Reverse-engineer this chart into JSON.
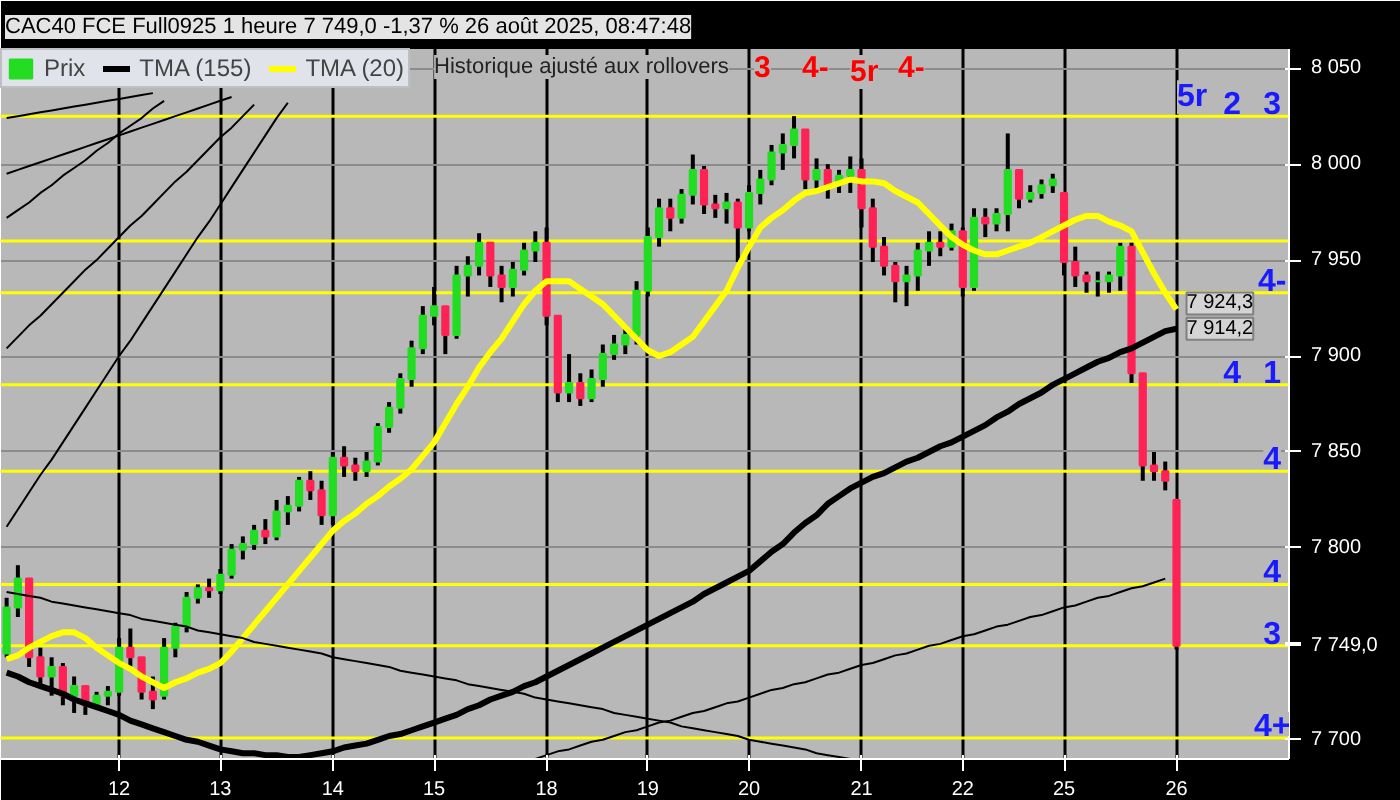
{
  "chart_data": {
    "type": "candlestick",
    "title": "CAC40 FCE Full0925 1 heure 7 749,0 -1,37 % 26 août 2025, 08:47:48",
    "categories": [
      null,
      null,
      null,
      null,
      null,
      null,
      null,
      null,
      null,
      null,
      "12",
      null,
      null,
      null,
      null,
      null,
      null,
      null,
      null,
      "13",
      null,
      null,
      null,
      null,
      null,
      null,
      null,
      null,
      null,
      "14",
      null,
      null,
      null,
      null,
      null,
      null,
      null,
      null,
      "15",
      null,
      null,
      null,
      null,
      null,
      null,
      null,
      null,
      null,
      "18",
      null,
      null,
      null,
      null,
      null,
      null,
      null,
      null,
      "19",
      null,
      null,
      null,
      null,
      null,
      null,
      null,
      null,
      "20",
      null,
      null,
      null,
      null,
      null,
      null,
      null,
      null,
      null,
      "21",
      null,
      null,
      null,
      null,
      null,
      null,
      null,
      null,
      "22",
      null,
      null,
      null,
      null,
      null,
      null,
      null,
      null,
      "25",
      null,
      null,
      null,
      null,
      null,
      null,
      null,
      null,
      null,
      "26"
    ],
    "ylim": [
      7690,
      8060
    ],
    "yticks": [
      {
        "value": 7700,
        "label": "7 700"
      },
      {
        "value": 7750,
        "label": null
      },
      {
        "value": 7800,
        "label": "7 800"
      },
      {
        "value": 7850,
        "label": "7 850"
      },
      {
        "value": 7900,
        "label": "7 900"
      },
      {
        "value": 7950,
        "label": "7 950"
      },
      {
        "value": 8000,
        "label": "8 000"
      },
      {
        "value": 8050,
        "label": "8 050"
      }
    ],
    "grid": true,
    "legend": "top left",
    "series": [
      {
        "name": "Prix",
        "colors": [
          "#22dd22",
          "#22dd22",
          "#ff2255",
          "#ff2255",
          "#22dd22",
          "#ff2255",
          "#22dd22",
          "#ff2255",
          "#22dd22",
          "#22dd22",
          "#22dd22",
          "#ff2255",
          "#ff2255",
          "#ff2255",
          "#22dd22",
          "#22dd22",
          "#22dd22",
          "#22dd22",
          "#ff2255",
          "#22dd22",
          "#22dd22",
          "#22dd22",
          "#22dd22",
          "#ff2255",
          "#22dd22",
          "#22dd22",
          "#22dd22",
          "#ff2255",
          "#ff2255",
          "#22dd22",
          "#ff2255",
          "#ff2255",
          "#22dd22",
          "#22dd22",
          "#22dd22",
          "#22dd22",
          "#22dd22",
          "#22dd22",
          "#22dd22",
          "#ff2255",
          "#22dd22",
          "#22dd22",
          "#22dd22",
          "#ff2255",
          "#ff2255",
          "#22dd22",
          "#22dd22",
          "#22dd22",
          "#ff2255",
          "#ff2255",
          "#22dd22",
          "#ff2255",
          "#22dd22",
          "#22dd22",
          "#22dd22",
          "#22dd22",
          "#22dd22",
          "#22dd22",
          "#22dd22",
          "#ff2255",
          "#22dd22",
          "#22dd22",
          "#ff2255",
          "#ff2255",
          "#22dd22",
          "#ff2255",
          "#22dd22",
          "#22dd22",
          "#22dd22",
          "#22dd22",
          "#22dd22",
          "#ff2255",
          "#22dd22",
          "#ff2255",
          "#22dd22",
          "#22dd22",
          "#ff2255",
          "#ff2255",
          "#ff2255",
          "#ff2255",
          "#22dd22",
          "#22dd22",
          "#22dd22",
          "#ff2255",
          "#22dd22",
          "#ff2255",
          "#22dd22",
          "#ff2255",
          "#22dd22",
          "#22dd22",
          "#ff2255",
          "#22dd22",
          "#22dd22",
          "#22dd22",
          "#ff2255",
          "#ff2255",
          "#ff2255",
          "#22dd22",
          "#22dd22",
          "#22dd22",
          "#ff2255",
          "#ff2255",
          "#ff2255",
          "#ff2255",
          "#ff2255"
        ],
        "ohlc": [
          [
            7745,
            7774,
            7743,
            7769
          ],
          [
            7769,
            7791,
            7764,
            7784
          ],
          [
            7784,
            7784,
            7738,
            7743
          ],
          [
            7743,
            7748,
            7728,
            7733
          ],
          [
            7733,
            7743,
            7723,
            7738
          ],
          [
            7738,
            7740,
            7718,
            7723
          ],
          [
            7723,
            7733,
            7714,
            7728
          ],
          [
            7728,
            7728,
            7713,
            7718
          ],
          [
            7718,
            7725,
            7716,
            7723
          ],
          [
            7723,
            7728,
            7718,
            7725
          ],
          [
            7725,
            7753,
            7723,
            7748
          ],
          [
            7748,
            7758,
            7738,
            7743
          ],
          [
            7743,
            7743,
            7721,
            7725
          ],
          [
            7725,
            7733,
            7716,
            7721
          ],
          [
            7723,
            7753,
            7721,
            7748
          ],
          [
            7748,
            7761,
            7743,
            7759
          ],
          [
            7759,
            7777,
            7756,
            7774
          ],
          [
            7774,
            7781,
            7771,
            7779
          ],
          [
            7779,
            7784,
            7774,
            7778
          ],
          [
            7778,
            7789,
            7776,
            7786
          ],
          [
            7786,
            7802,
            7784,
            7799
          ],
          [
            7799,
            7806,
            7794,
            7802
          ],
          [
            7802,
            7812,
            7799,
            7809
          ],
          [
            7809,
            7815,
            7802,
            7806
          ],
          [
            7806,
            7825,
            7804,
            7819
          ],
          [
            7819,
            7827,
            7812,
            7822
          ],
          [
            7822,
            7837,
            7819,
            7835
          ],
          [
            7835,
            7840,
            7825,
            7830
          ],
          [
            7830,
            7835,
            7812,
            7817
          ],
          [
            7817,
            7850,
            7812,
            7847
          ],
          [
            7847,
            7853,
            7837,
            7843
          ],
          [
            7843,
            7847,
            7835,
            7840
          ],
          [
            7840,
            7850,
            7837,
            7845
          ],
          [
            7845,
            7865,
            7843,
            7863
          ],
          [
            7863,
            7876,
            7860,
            7873
          ],
          [
            7873,
            7891,
            7870,
            7888
          ],
          [
            7888,
            7908,
            7884,
            7904
          ],
          [
            7904,
            7926,
            7901,
            7921
          ],
          [
            7921,
            7936,
            7916,
            7926
          ],
          [
            7926,
            7926,
            7901,
            7911
          ],
          [
            7911,
            7947,
            7909,
            7942
          ],
          [
            7942,
            7952,
            7931,
            7947
          ],
          [
            7947,
            7964,
            7942,
            7959
          ],
          [
            7959,
            7959,
            7936,
            7942
          ],
          [
            7942,
            7947,
            7928,
            7936
          ],
          [
            7936,
            7949,
            7931,
            7945
          ],
          [
            7945,
            7959,
            7942,
            7955
          ],
          [
            7955,
            7965,
            7949,
            7959
          ],
          [
            7959,
            7967,
            7916,
            7921
          ],
          [
            7921,
            7921,
            7876,
            7881
          ],
          [
            7881,
            7901,
            7876,
            7886
          ],
          [
            7886,
            7891,
            7874,
            7878
          ],
          [
            7878,
            7893,
            7876,
            7888
          ],
          [
            7888,
            7906,
            7884,
            7901
          ],
          [
            7901,
            7911,
            7898,
            7906
          ],
          [
            7906,
            7916,
            7901,
            7911
          ],
          [
            7911,
            7939,
            7906,
            7934
          ],
          [
            7934,
            7967,
            7931,
            7962
          ],
          [
            7962,
            7982,
            7957,
            7977
          ],
          [
            7977,
            7982,
            7965,
            7972
          ],
          [
            7972,
            7987,
            7969,
            7984
          ],
          [
            7984,
            8005,
            7979,
            7997
          ],
          [
            7997,
            7999,
            7974,
            7979
          ],
          [
            7979,
            7984,
            7972,
            7977
          ],
          [
            7977,
            7985,
            7969,
            7980
          ],
          [
            7980,
            7982,
            7949,
            7967
          ],
          [
            7967,
            7989,
            7965,
            7985
          ],
          [
            7985,
            7997,
            7979,
            7992
          ],
          [
            7992,
            8010,
            7989,
            8006
          ],
          [
            8006,
            8016,
            7997,
            8010
          ],
          [
            8010,
            8025,
            8003,
            8018
          ],
          [
            8018,
            8018,
            7987,
            7992
          ],
          [
            7992,
            8003,
            7985,
            7997
          ],
          [
            7997,
            8000,
            7982,
            7989
          ],
          [
            7989,
            7997,
            7985,
            7994
          ],
          [
            7994,
            8004,
            7985,
            7997
          ],
          [
            7997,
            8003,
            7967,
            7977
          ],
          [
            7977,
            7982,
            7949,
            7957
          ],
          [
            7957,
            7962,
            7942,
            7947
          ],
          [
            7947,
            7949,
            7928,
            7939
          ],
          [
            7939,
            7947,
            7926,
            7942
          ],
          [
            7942,
            7959,
            7934,
            7955
          ],
          [
            7955,
            7965,
            7947,
            7959
          ],
          [
            7959,
            7965,
            7952,
            7957
          ],
          [
            7957,
            7969,
            7955,
            7965
          ],
          [
            7965,
            7967,
            7931,
            7936
          ],
          [
            7936,
            7977,
            7934,
            7972
          ],
          [
            7972,
            7977,
            7962,
            7969
          ],
          [
            7969,
            7977,
            7965,
            7974
          ],
          [
            7974,
            8016,
            7965,
            7997
          ],
          [
            7997,
            7997,
            7977,
            7982
          ],
          [
            7982,
            7989,
            7980,
            7985
          ],
          [
            7985,
            7992,
            7982,
            7989
          ],
          [
            7989,
            7995,
            7985,
            7992
          ],
          [
            7985,
            7985,
            7942,
            7949
          ],
          [
            7949,
            7957,
            7936,
            7942
          ],
          [
            7942,
            7944,
            7933,
            7939
          ],
          [
            7939,
            7944,
            7931,
            7939
          ],
          [
            7939,
            7944,
            7933,
            7942
          ],
          [
            7942,
            7959,
            7934,
            7957
          ],
          [
            7957,
            7959,
            7886,
            7891
          ],
          [
            7891,
            7891,
            7835,
            7843
          ],
          [
            7843,
            7850,
            7835,
            7840
          ],
          [
            7840,
            7845,
            7830,
            7835
          ],
          [
            7825,
            7825,
            7747,
            7749
          ]
        ]
      },
      {
        "type": "line",
        "name": "TMA (155)",
        "color": "#000000",
        "values": [
          7735,
          7733,
          7730,
          7728,
          7726,
          7724,
          7721,
          7719,
          7717,
          7715,
          7713,
          7710,
          7708,
          7706,
          7704,
          7702,
          7700,
          7699,
          7697,
          7695,
          7694,
          7693,
          7693,
          7692,
          7692,
          7691,
          7691,
          7692,
          7693,
          7694,
          7696,
          7697,
          7698,
          7700,
          7702,
          7703,
          7705,
          7707,
          7709,
          7711,
          7713,
          7716,
          7718,
          7721,
          7723,
          7725,
          7728,
          7730,
          7733,
          7736,
          7739,
          7742,
          7745,
          7748,
          7751,
          7754,
          7757,
          7760,
          7763,
          7766,
          7769,
          7772,
          7776,
          7779,
          7782,
          7785,
          7788,
          7793,
          7798,
          7802,
          7808,
          7813,
          7817,
          7823,
          7827,
          7831,
          7834,
          7837,
          7839,
          7842,
          7845,
          7847,
          7850,
          7853,
          7855,
          7858,
          7861,
          7864,
          7868,
          7871,
          7875,
          7878,
          7881,
          7885,
          7888,
          7891,
          7894,
          7897,
          7899,
          7902,
          7904,
          7907,
          7910,
          7913,
          7914.2
        ],
        "value_labels": [
          null,
          null,
          null,
          null,
          null,
          null,
          null,
          null,
          null,
          null,
          null,
          null,
          null,
          null,
          null,
          null,
          null,
          null,
          null,
          null,
          null,
          null,
          null,
          null,
          null,
          null,
          null,
          null,
          null,
          null,
          null,
          null,
          null,
          null,
          null,
          null,
          null,
          null,
          null,
          null,
          null,
          null,
          null,
          null,
          null,
          null,
          null,
          null,
          null,
          null,
          null,
          null,
          null,
          null,
          null,
          null,
          null,
          null,
          null,
          null,
          null,
          null,
          null,
          null,
          null,
          null,
          null,
          null,
          null,
          null,
          null,
          null,
          null,
          null,
          null,
          null,
          null,
          null,
          null,
          null,
          null,
          null,
          null,
          null,
          null,
          null,
          null,
          null,
          null,
          null,
          null,
          null,
          null,
          null,
          null,
          null,
          null,
          null,
          null,
          null,
          null,
          null,
          null,
          null,
          "7 914,2"
        ]
      },
      {
        "type": "line",
        "name": "TMA (20)",
        "color": "#ffff00",
        "values": [
          7742,
          7744,
          7748,
          7751,
          7754,
          7756,
          7756,
          7753,
          7748,
          7744,
          7740,
          7737,
          7733,
          7730,
          7727,
          7730,
          7732,
          7735,
          7737,
          7740,
          7746,
          7753,
          7760,
          7767,
          7774,
          7781,
          7788,
          7795,
          7802,
          7809,
          7814,
          7818,
          7823,
          7827,
          7832,
          7836,
          7841,
          7848,
          7855,
          7865,
          7875,
          7884,
          7894,
          7902,
          7909,
          7918,
          7927,
          7934,
          7939,
          7939,
          7939,
          7935,
          7931,
          7927,
          7921,
          7915,
          7909,
          7903,
          7900,
          7902,
          7906,
          7910,
          7918,
          7926,
          7934,
          7946,
          7957,
          7967,
          7972,
          7976,
          7981,
          7985,
          7986,
          7988,
          7990,
          7992,
          7991,
          7991,
          7990,
          7986,
          7983,
          7980,
          7974,
          7968,
          7962,
          7958,
          7955,
          7953,
          7953,
          7955,
          7957,
          7959,
          7962,
          7965,
          7968,
          7971,
          7973,
          7973,
          7970,
          7968,
          7965,
          7954,
          7943,
          7933,
          7924.3
        ],
        "value_labels": [
          null,
          null,
          null,
          null,
          null,
          null,
          null,
          null,
          null,
          null,
          null,
          null,
          null,
          null,
          null,
          null,
          null,
          null,
          null,
          null,
          null,
          null,
          null,
          null,
          null,
          null,
          null,
          null,
          null,
          null,
          null,
          null,
          null,
          null,
          null,
          null,
          null,
          null,
          null,
          null,
          null,
          null,
          null,
          null,
          null,
          null,
          null,
          null,
          null,
          null,
          null,
          null,
          null,
          null,
          null,
          null,
          null,
          null,
          null,
          null,
          null,
          null,
          null,
          null,
          null,
          null,
          null,
          null,
          null,
          null,
          null,
          null,
          null,
          null,
          null,
          null,
          null,
          null,
          null,
          null,
          null,
          null,
          null,
          null,
          null,
          null,
          null,
          null,
          null,
          null,
          null,
          null,
          null,
          null,
          null,
          null,
          null,
          null,
          null,
          null,
          null,
          null,
          null,
          null,
          "7 924,3"
        ]
      },
      {
        "type": "line",
        "color": "#000000",
        "values": [
          7777,
          7776,
          7775,
          7774,
          7772,
          7771,
          7770,
          7769,
          7768,
          7767,
          7766,
          7765,
          7763,
          7762,
          7761,
          7760,
          7759,
          7757,
          7756,
          7755,
          7754,
          7753,
          7751,
          7750,
          7749,
          7748,
          7747,
          7746,
          7745,
          7743,
          7742,
          7741,
          7740,
          7739,
          7738,
          7736,
          7735,
          7734,
          7733,
          7732,
          7731,
          7729,
          7728,
          7727,
          7726,
          7725,
          7724,
          7722,
          7721,
          7720,
          7719,
          7718,
          7717,
          7716,
          7714,
          7713,
          7712,
          7711,
          7710,
          7709,
          7707,
          7706,
          7705,
          7704,
          7703,
          7702,
          7700,
          7699,
          7698,
          7697,
          7696,
          7695,
          7693,
          7692,
          7691,
          7690,
          null,
          null,
          null,
          null,
          null,
          null,
          null,
          null,
          null,
          null,
          null,
          null,
          null,
          null,
          null,
          null,
          null,
          null,
          null,
          null,
          null,
          null,
          null,
          null,
          null,
          null,
          null,
          null,
          null
        ]
      },
      {
        "type": "line",
        "color": "#000000",
        "values": [
          null,
          null,
          null,
          null,
          null,
          null,
          null,
          null,
          null,
          null,
          null,
          null,
          null,
          null,
          null,
          null,
          null,
          null,
          null,
          null,
          null,
          null,
          null,
          null,
          null,
          null,
          null,
          null,
          null,
          null,
          null,
          null,
          null,
          null,
          null,
          null,
          null,
          null,
          null,
          null,
          null,
          null,
          null,
          null,
          null,
          null,
          null,
          7690,
          7692,
          7694,
          7695,
          7697,
          7699,
          7700,
          7702,
          7704,
          7705,
          7707,
          7709,
          7710,
          7712,
          7714,
          7715,
          7717,
          7719,
          7720,
          7722,
          7724,
          7726,
          7727,
          7729,
          7730,
          7732,
          7734,
          7735,
          7737,
          7739,
          7740,
          7742,
          7744,
          7745,
          7747,
          7749,
          7750,
          7752,
          7754,
          7755,
          7757,
          7759,
          7760,
          7762,
          7764,
          7765,
          7767,
          7769,
          7770,
          7772,
          7774,
          7775,
          7777,
          7779,
          7780,
          7782,
          7784,
          null
        ]
      },
      {
        "type": "line",
        "color": "#000000",
        "values": [
          8024,
          8025,
          8026,
          8027,
          8028,
          8029,
          8030,
          8031,
          8032,
          8033,
          8034,
          8035,
          8036,
          8037,
          null,
          null,
          null,
          null,
          null,
          null,
          null,
          null,
          null,
          null,
          null,
          null,
          null,
          null,
          null,
          null,
          null,
          null,
          null,
          null,
          null,
          null,
          null,
          null,
          null,
          null,
          null,
          null,
          null,
          null,
          null,
          null,
          null,
          null,
          null,
          null,
          null,
          null,
          null,
          null,
          null,
          null,
          null,
          null,
          null,
          null,
          null,
          null,
          null,
          null,
          null,
          null,
          null,
          null,
          null,
          null,
          null,
          null,
          null,
          null,
          null,
          null,
          null,
          null,
          null,
          null,
          null,
          null,
          null,
          null,
          null,
          null,
          null,
          null,
          null,
          null,
          null,
          null,
          null,
          null,
          null,
          null,
          null,
          null,
          null,
          null,
          null,
          null,
          null,
          null,
          null
        ]
      },
      {
        "type": "line",
        "color": "#000000",
        "values": [
          7995,
          7997,
          7999,
          8001,
          8003,
          8005,
          8007,
          8009,
          8011,
          8013,
          8015,
          8017,
          8019,
          8021,
          8023,
          8025,
          8027,
          8029,
          8031,
          8033,
          8035,
          null,
          null,
          null,
          null,
          null,
          null,
          null,
          null,
          null,
          null,
          null,
          null,
          null,
          null,
          null,
          null,
          null,
          null,
          null,
          null,
          null,
          null,
          null,
          null,
          null,
          null,
          null,
          null,
          null,
          null,
          null,
          null,
          null,
          null,
          null,
          null,
          null,
          null,
          null,
          null,
          null,
          null,
          null,
          null,
          null,
          null,
          null,
          null,
          null,
          null,
          null,
          null,
          null,
          null,
          null,
          null,
          null,
          null,
          null,
          null,
          null,
          null,
          null,
          null,
          null,
          null,
          null,
          null,
          null,
          null,
          null,
          null,
          null,
          null,
          null,
          null,
          null,
          null,
          null,
          null,
          null,
          null,
          null,
          null
        ]
      },
      {
        "type": "line",
        "color": "#000000",
        "values": [
          7972,
          7976,
          7980,
          7985,
          7989,
          7994,
          7998,
          8002,
          8007,
          8011,
          8016,
          8020,
          8024,
          8029,
          8033,
          null,
          null,
          null,
          null,
          null,
          null,
          null,
          null,
          null,
          null,
          null,
          null,
          null,
          null,
          null,
          null,
          null,
          null,
          null,
          null,
          null,
          null,
          null,
          null,
          null,
          null,
          null,
          null,
          null,
          null,
          null,
          null,
          null,
          null,
          null,
          null,
          null,
          null,
          null,
          null,
          null,
          null,
          null,
          null,
          null,
          null,
          null,
          null,
          null,
          null,
          null,
          null,
          null,
          null,
          null,
          null,
          null,
          null,
          null,
          null,
          null,
          null,
          null,
          null,
          null,
          null,
          null,
          null,
          null,
          null,
          null,
          null,
          null,
          null,
          null,
          null,
          null,
          null,
          null,
          null,
          null,
          null,
          null,
          null,
          null,
          null,
          null,
          null,
          null,
          null
        ]
      },
      {
        "type": "line",
        "color": "#000000",
        "values": [
          7904,
          7910,
          7916,
          7921,
          7927,
          7933,
          7939,
          7945,
          7950,
          7956,
          7962,
          7968,
          7973,
          7979,
          7985,
          7991,
          7996,
          8002,
          8008,
          8014,
          8019,
          8025,
          8031,
          null,
          null,
          null,
          null,
          null,
          null,
          null,
          null,
          null,
          null,
          null,
          null,
          null,
          null,
          null,
          null,
          null,
          null,
          null,
          null,
          null,
          null,
          null,
          null,
          null,
          null,
          null,
          null,
          null,
          null,
          null,
          null,
          null,
          null,
          null,
          null,
          null,
          null,
          null,
          null,
          null,
          null,
          null,
          null,
          null,
          null,
          null,
          null,
          null,
          null,
          null,
          null,
          null,
          null,
          null,
          null,
          null,
          null,
          null,
          null,
          null,
          null,
          null,
          null,
          null,
          null,
          null,
          null,
          null,
          null,
          null,
          null,
          null,
          null,
          null,
          null,
          null,
          null,
          null,
          null,
          null,
          null
        ]
      },
      {
        "type": "line",
        "color": "#000000",
        "values": [
          7811,
          7820,
          7829,
          7838,
          7846,
          7855,
          7864,
          7873,
          7882,
          7891,
          7900,
          7908,
          7917,
          7926,
          7935,
          7944,
          7953,
          7962,
          7970,
          7979,
          7988,
          7997,
          8006,
          8015,
          8024,
          8032,
          null,
          null,
          null,
          null,
          null,
          null,
          null,
          null,
          null,
          null,
          null,
          null,
          null,
          null,
          null,
          null,
          null,
          null,
          null,
          null,
          null,
          null,
          null,
          null,
          null,
          null,
          null,
          null,
          null,
          null,
          null,
          null,
          null,
          null,
          null,
          null,
          null,
          null,
          null,
          null,
          null,
          null,
          null,
          null,
          null,
          null,
          null,
          null,
          null,
          null,
          null,
          null,
          null,
          null,
          null,
          null,
          null,
          null,
          null,
          null,
          null,
          null,
          null,
          null,
          null,
          null,
          null,
          null,
          null,
          null,
          null,
          null,
          null,
          null,
          null,
          null,
          null,
          null,
          null
        ]
      }
    ],
    "ref_lines": [
      {
        "axis": "y",
        "value": 8025,
        "color": "#ffff00"
      },
      {
        "axis": "y",
        "value": 7960,
        "color": "#ffff00"
      },
      {
        "axis": "y",
        "value": 7933,
        "color": "#ffff00"
      },
      {
        "axis": "y",
        "value": 7885,
        "color": "#ffff00"
      },
      {
        "axis": "y",
        "value": 7840,
        "color": "#ffff00"
      },
      {
        "axis": "y",
        "value": 7781,
        "color": "#ffff00"
      },
      {
        "axis": "y",
        "value": 7749,
        "label": "7 749,0",
        "color": "#ffff00"
      },
      {
        "axis": "y",
        "value": 7701,
        "color": "#ffff00"
      }
    ],
    "annotations": [
      "Historique ajusté aux rollovers",
      "3",
      "4-",
      "5r",
      {
        "text": "3",
        "y": 8025
      },
      {
        "text": "2",
        "y": 8025
      },
      {
        "text": "5r",
        "y": 8025
      },
      {
        "text": "1",
        "y": 7885
      },
      {
        "text": "4-",
        "y": 7933
      },
      {
        "text": "4",
        "y": 7885
      },
      {
        "text": "4",
        "y": 7840
      },
      "4-",
      {
        "text": "4",
        "y": 7781
      },
      {
        "text": "3",
        "y": 7749
      },
      {
        "text": "4+",
        "y": 7701
      }
    ]
  }
}
